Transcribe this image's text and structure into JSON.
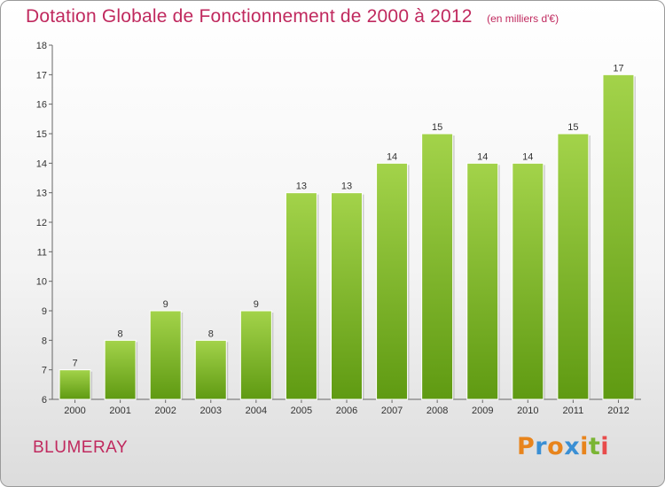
{
  "chart_data": {
    "type": "bar",
    "title": "Dotation Globale de Fonctionnement de 2000 à 2012",
    "subtitle": "(en milliers d'€)",
    "categories": [
      "2000",
      "2001",
      "2002",
      "2003",
      "2004",
      "2005",
      "2006",
      "2007",
      "2008",
      "2009",
      "2010",
      "2011",
      "2012"
    ],
    "values": [
      7,
      8,
      9,
      8,
      9,
      13,
      13,
      14,
      15,
      14,
      14,
      15,
      17
    ],
    "data_labels": [
      "7",
      "8",
      "9",
      "8",
      "9",
      "13",
      "13",
      "14",
      "15",
      "14",
      "14",
      "15",
      "17"
    ],
    "ylim": [
      6,
      18
    ],
    "yticks": [
      6,
      7,
      8,
      9,
      10,
      11,
      12,
      13,
      14,
      15,
      16,
      17,
      18
    ],
    "ytick_labels": [
      "6",
      "7",
      "8",
      "9",
      "10",
      "11",
      "12",
      "13",
      "14",
      "15",
      "16",
      "17",
      "18"
    ],
    "xlabel": "",
    "ylabel": "",
    "grid": false,
    "bar_color": "#7fbf2a"
  },
  "footer": {
    "commune": "BLUMERAY",
    "brand": "Proxiti"
  },
  "colors": {
    "title": "#c0295e",
    "brand_letters": [
      "#e8841c",
      "#3a8fd4",
      "#e8841c",
      "#3a8fd4",
      "#e8841c",
      "#7ab534",
      "#e84b4b"
    ]
  }
}
